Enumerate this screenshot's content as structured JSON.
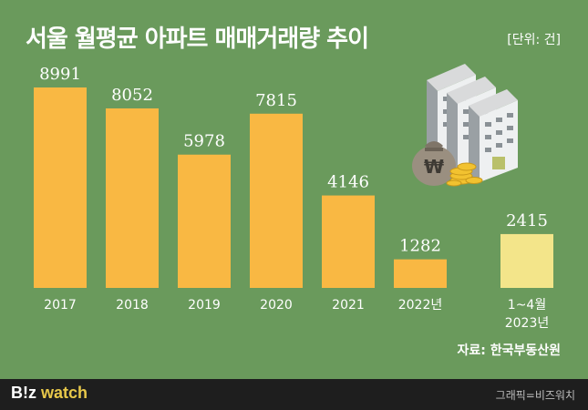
{
  "unit_label": "[단위: 건]",
  "source": "자료: 한국부동산원",
  "footer": {
    "logo_biz": "B!z",
    "logo_watch": "watch",
    "credit": "그래픽=비즈워치"
  },
  "colors": {
    "background": "#6a9a5c",
    "bar": "#f9b843",
    "bar_highlight": "#f3e58a",
    "text": "#ffffff",
    "footer_bg": "#1e1e1e",
    "logo_accent": "#e8c84a"
  },
  "illustration": {
    "description_icon": "apartment-buildings-with-money-bag-and-coins-icon",
    "money_symbol": "₩"
  },
  "chart_data": {
    "type": "bar",
    "title": "서울 월평균 아파트 매매거래량 추이",
    "xlabel": "",
    "ylabel": "",
    "categories": [
      "2017",
      "2018",
      "2019",
      "2020",
      "2021",
      "2022년",
      "1~4월\n2023년"
    ],
    "values": [
      8991,
      8052,
      5978,
      7815,
      4146,
      1282,
      2415
    ],
    "highlight_index": 6,
    "ylim": [
      0,
      10000
    ],
    "grid": false,
    "legend": "none"
  }
}
